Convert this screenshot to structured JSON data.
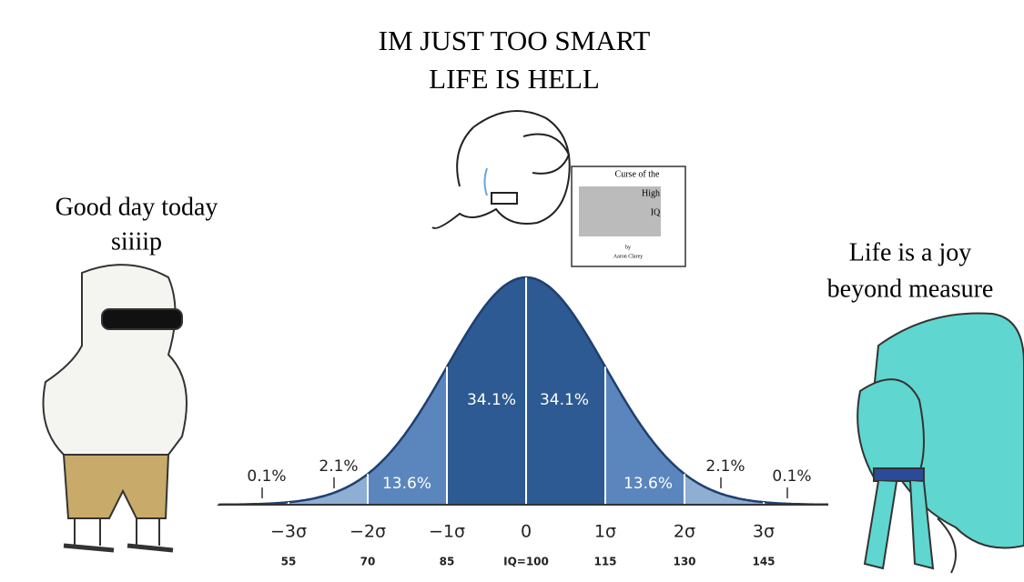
{
  "title": [
    "IM JUST TOO SMART",
    "LIFE IS HELL"
  ],
  "left_caption": [
    "Good day today",
    "siiiip"
  ],
  "right_caption": [
    "Life is a joy",
    "beyond measure"
  ],
  "book": {
    "title": [
      "Curse of the",
      "High",
      "IQ"
    ],
    "author": [
      "by",
      "Aaron Clarey"
    ]
  },
  "curve": {
    "percent_labels": [
      "0.1%",
      "2.1%",
      "13.6%",
      "34.1%",
      "34.1%",
      "13.6%",
      "2.1%",
      "0.1%"
    ],
    "sigma_labels": [
      "−3σ",
      "−2σ",
      "−1σ",
      "0",
      "1σ",
      "2σ",
      "3σ"
    ],
    "iq_labels": [
      "55",
      "70",
      "85",
      "IQ=100",
      "115",
      "130",
      "145"
    ]
  }
}
